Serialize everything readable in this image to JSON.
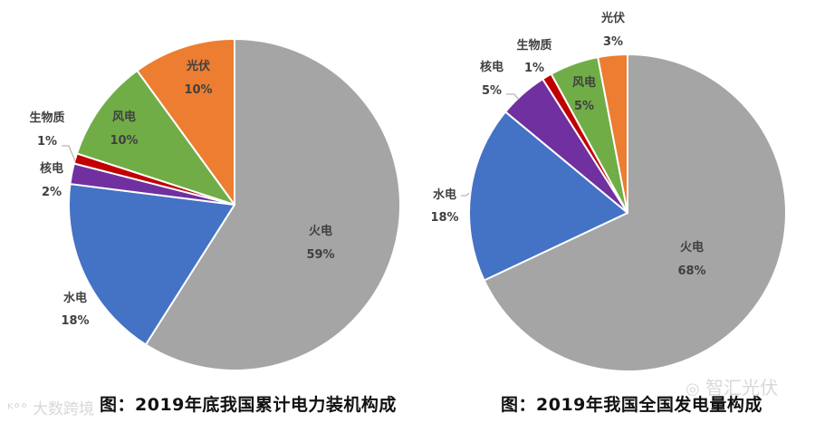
{
  "chart_data": [
    {
      "type": "pie",
      "title": "图：2019年底我国累计电力装机构成",
      "categories": [
        "火电",
        "水电",
        "核电",
        "生物质",
        "风电",
        "光伏"
      ],
      "values": [
        59,
        18,
        2,
        1,
        10,
        10
      ],
      "unit": "%",
      "colors": [
        "#A5A5A5",
        "#4472C4",
        "#7030A0",
        "#C00000",
        "#70AD47",
        "#ED7D31"
      ],
      "start_angle_deg": 0,
      "direction": "clockwise",
      "legend": "none",
      "data_labels": [
        "火电 59%",
        "水电 18%",
        "核电 2%",
        "生物质 1%",
        "风电 10%",
        "光伏 10%"
      ]
    },
    {
      "type": "pie",
      "title": "图：2019年我国全国发电量构成",
      "categories": [
        "火电",
        "水电",
        "核电",
        "生物质",
        "风电",
        "光伏"
      ],
      "values": [
        68,
        18,
        5,
        1,
        5,
        3
      ],
      "unit": "%",
      "colors": [
        "#A5A5A5",
        "#4472C4",
        "#7030A0",
        "#C00000",
        "#70AD47",
        "#ED7D31"
      ],
      "start_angle_deg": 0,
      "direction": "clockwise",
      "legend": "none",
      "data_labels": [
        "火电 68%",
        "水电 18%",
        "核电 5%",
        "生物质 1%",
        "风电 5%",
        "光伏 3%"
      ]
    }
  ],
  "left_chart": {
    "caption": "图：2019年底我国累计电力装机构成",
    "labels": [
      {
        "name": "火电",
        "pct": "59%"
      },
      {
        "name": "水电",
        "pct": "18%"
      },
      {
        "name": "核电",
        "pct": "2%"
      },
      {
        "name": "生物质",
        "pct": "1%"
      },
      {
        "name": "风电",
        "pct": "10%"
      },
      {
        "name": "光伏",
        "pct": "10%"
      }
    ]
  },
  "right_chart": {
    "caption": "图：2019年我国全国发电量构成",
    "labels": [
      {
        "name": "火电",
        "pct": "68%"
      },
      {
        "name": "水电",
        "pct": "18%"
      },
      {
        "name": "核电",
        "pct": "5%"
      },
      {
        "name": "生物质",
        "pct": "1%"
      },
      {
        "name": "风电",
        "pct": "5%"
      },
      {
        "name": "光伏",
        "pct": "3%"
      }
    ]
  },
  "watermarks": {
    "bottom_left": "大数跨境",
    "bottom_right": "智汇光伏"
  }
}
